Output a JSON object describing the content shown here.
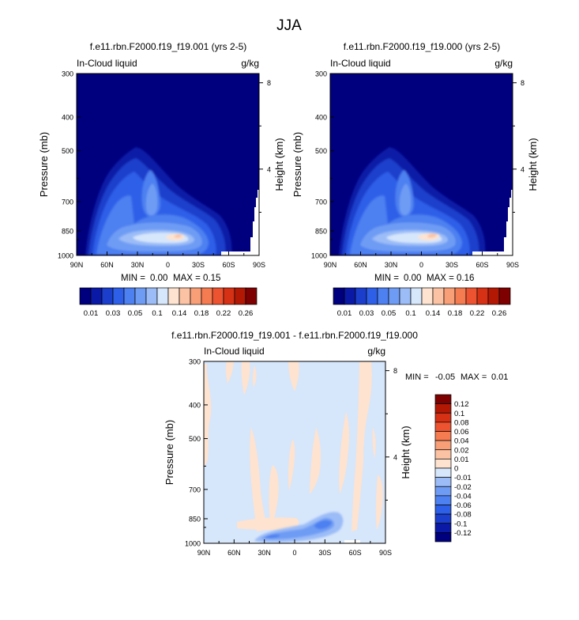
{
  "figure_title": "JJA",
  "colorbar_top": {
    "labels": [
      "0.01",
      "0.03",
      "0.05",
      "0.1",
      "0.14",
      "0.18",
      "0.22",
      "0.26"
    ],
    "colors": [
      "#00007f",
      "#0a1aa6",
      "#1b3fcc",
      "#2d5fe8",
      "#4d80f0",
      "#6e9cf4",
      "#9bbcf7",
      "#d6e6fb",
      "#fde3d0",
      "#fbc2a3",
      "#f89f78",
      "#f57b50",
      "#ed5330",
      "#d63015",
      "#b31805",
      "#7f0000"
    ]
  },
  "colorbar_diff": {
    "labels": [
      "0.12",
      "0.1",
      "0.08",
      "0.06",
      "0.04",
      "0.02",
      "0.01",
      "0",
      "-0.01",
      "-0.02",
      "-0.04",
      "-0.06",
      "-0.08",
      "-0.1",
      "-0.12"
    ],
    "colors": [
      "#7f0000",
      "#b31805",
      "#d63015",
      "#ed5330",
      "#f57b50",
      "#f89f78",
      "#fbc2a3",
      "#fde3d0",
      "#d6e6fb",
      "#9bbcf7",
      "#6e9cf4",
      "#4d80f0",
      "#2d5fe8",
      "#1b3fcc",
      "#0a1aa6",
      "#00007f"
    ]
  },
  "chart_data": [
    {
      "type": "heatmap",
      "title": "f.e11.rbn.F2000.f19_f19.001 (yrs 2-5)",
      "left_label": "In-Cloud liquid",
      "right_label": "g/kg",
      "ylabel": "Pressure (mb)",
      "ylabel_right": "Height (km)",
      "x_ticks": [
        "90N",
        "60N",
        "30N",
        "0",
        "30S",
        "60S",
        "90S"
      ],
      "y_ticks": [
        "300",
        "400",
        "500",
        "700",
        "850",
        "1000"
      ],
      "y_ticks_right": [
        "8",
        "4"
      ],
      "xlim": [
        90,
        -90
      ],
      "ylim": [
        1000,
        300
      ],
      "min_label": "MIN =",
      "min_value": "0.00",
      "max_label": "MAX =",
      "max_value": "0.15"
    },
    {
      "type": "heatmap",
      "title": "f.e11.rbn.F2000.f19_f19.000 (yrs 2-5)",
      "left_label": "In-Cloud liquid",
      "right_label": "g/kg",
      "ylabel": "Pressure (mb)",
      "ylabel_right": "Height (km)",
      "x_ticks": [
        "90N",
        "60N",
        "30N",
        "0",
        "30S",
        "60S",
        "90S"
      ],
      "y_ticks": [
        "300",
        "400",
        "500",
        "700",
        "850",
        "1000"
      ],
      "y_ticks_right": [
        "8",
        "4"
      ],
      "xlim": [
        90,
        -90
      ],
      "ylim": [
        1000,
        300
      ],
      "min_label": "MIN =",
      "min_value": "0.00",
      "max_label": "MAX =",
      "max_value": "0.16"
    },
    {
      "type": "heatmap",
      "title": "f.e11.rbn.F2000.f19_f19.001 - f.e11.rbn.F2000.f19_f19.000",
      "left_label": "In-Cloud liquid",
      "right_label": "g/kg",
      "ylabel": "Pressure (mb)",
      "ylabel_right": "Height (km)",
      "x_ticks": [
        "90N",
        "60N",
        "30N",
        "0",
        "30S",
        "60S",
        "90S"
      ],
      "y_ticks": [
        "300",
        "400",
        "500",
        "700",
        "850",
        "1000"
      ],
      "y_ticks_right": [
        "8",
        "4"
      ],
      "xlim": [
        90,
        -90
      ],
      "ylim": [
        1000,
        300
      ],
      "min_label": "MIN =",
      "min_value": "-0.05",
      "max_label": "MAX =",
      "max_value": "0.01"
    }
  ]
}
